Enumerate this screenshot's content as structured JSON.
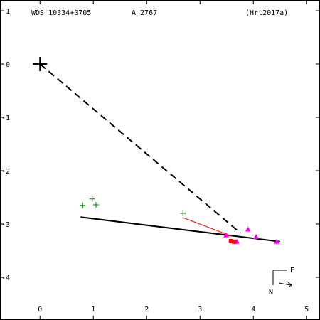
{
  "header": {
    "wds_id": "WDS 10334+0705",
    "discoverer": "A  2767",
    "reference": "(Hrt2017a)"
  },
  "compass": {
    "north_label": "N",
    "east_label": "E"
  },
  "colors": {
    "axes": "#000000",
    "orbit": "#000000",
    "dashed_line": "#000000",
    "observations_magenta": "#ff00ff",
    "observations_red": "#ff0000",
    "observations_green": "#008000",
    "residual_red": "#ff0000"
  },
  "chart_data": {
    "type": "scatter",
    "title": "",
    "xlabel": "",
    "ylabel": "",
    "xlim": [
      -0.75,
      5.25
    ],
    "ylim": [
      -4.8,
      1.2
    ],
    "y_inverted": true,
    "x_ticks": [
      0,
      1,
      2,
      3,
      4,
      5
    ],
    "x_tick_labels": [
      "0",
      "1",
      "2",
      "3",
      "4",
      "5"
    ],
    "y_ticks": [
      1,
      0,
      -1,
      -2,
      -3,
      -4
    ],
    "y_tick_labels": [
      "1",
      "0",
      "-1",
      "-2",
      "-3",
      "-4"
    ],
    "primary_star": {
      "x": 0.0,
      "y": 0.0
    },
    "dashed_line_to_companion": {
      "x1": 0.0,
      "y1": 0.0,
      "x2": 3.76,
      "y2": -3.17
    },
    "orbit_line": {
      "x1": 0.76,
      "y1": -2.87,
      "x2": 4.5,
      "y2": -3.33
    },
    "series": [
      {
        "marker": "plus",
        "color": "#008000",
        "points": [
          {
            "x": 0.8,
            "y": -2.65
          },
          {
            "x": 0.98,
            "y": -2.53
          },
          {
            "x": 1.05,
            "y": -2.64
          },
          {
            "x": 2.68,
            "y": -2.8
          }
        ]
      },
      {
        "marker": "triangle",
        "color": "#ff00ff",
        "points": [
          {
            "x": 3.49,
            "y": -3.21
          },
          {
            "x": 3.69,
            "y": -3.33
          },
          {
            "x": 3.9,
            "y": -3.1
          },
          {
            "x": 4.05,
            "y": -3.24
          },
          {
            "x": 4.44,
            "y": -3.33
          }
        ]
      },
      {
        "marker": "square",
        "color": "#ff0000",
        "points": [
          {
            "x": 3.58,
            "y": -3.32
          },
          {
            "x": 3.64,
            "y": -3.33
          }
        ]
      }
    ],
    "residuals": [
      {
        "x1": 2.68,
        "y1": -2.88,
        "x2": 3.6,
        "y2": -3.23,
        "color": "#ff0000"
      }
    ]
  }
}
